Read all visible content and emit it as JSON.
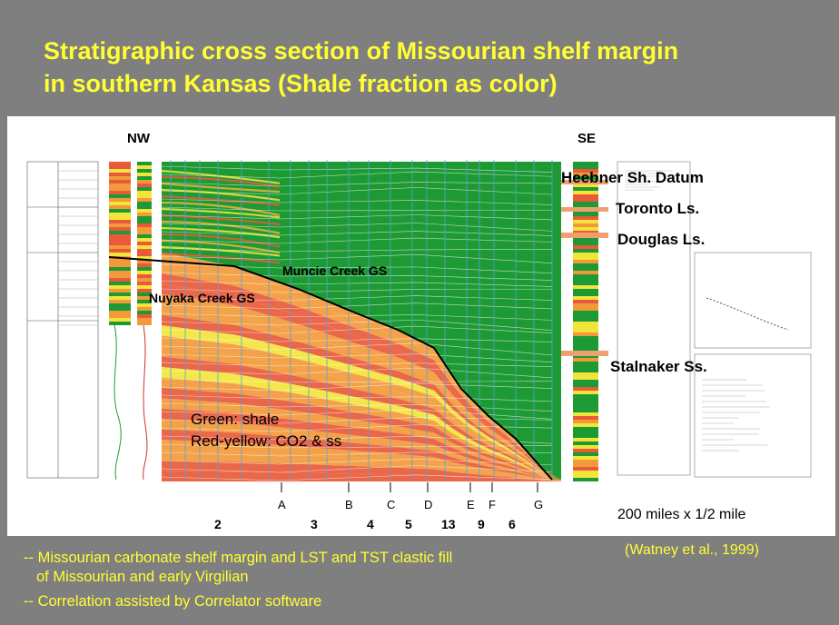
{
  "slide": {
    "title_line1": "Stratigraphic cross section of Missourian shelf margin",
    "title_line2": "in southern Kansas (Shale fraction as color)"
  },
  "section": {
    "nw_label": "NW",
    "se_label": "SE",
    "datum_labels": [
      {
        "id": "heebner",
        "text": "Heebner Sh. Datum"
      },
      {
        "id": "toronto",
        "text": "Toronto Ls."
      },
      {
        "id": "douglas",
        "text": "Douglas Ls."
      },
      {
        "id": "stalnaker",
        "text": "Stalnaker Ss."
      }
    ],
    "gs_labels": [
      {
        "id": "muncie",
        "text": "Muncie Creek GS"
      },
      {
        "id": "nuyaka",
        "text": "Nuyaka Creek GS"
      }
    ],
    "legend_line1": "Green: shale",
    "legend_line2": "Red-yellow: CO2 & ss",
    "well_letters": [
      "A",
      "B",
      "C",
      "D",
      "E",
      "F",
      "G"
    ],
    "well_numbers": [
      "2",
      "3",
      "4",
      "5",
      "13",
      "9",
      "6"
    ],
    "scale_text": "200 miles x 1/2 mile",
    "colors": {
      "shale": "#1e9a35",
      "carbonate_red": "#e85a3a",
      "carbonate_yellow": "#f2e53a",
      "background": "#7f7f7f",
      "title": "#ffff33"
    }
  },
  "footer": {
    "line1": "-- Missourian carbonate shelf margin and LST and TST clastic fill",
    "line2": "of Missourian and early Virgilian",
    "line3": "-- Correlation assisted by Correlator software"
  },
  "citation": "(Watney et al., 1999)"
}
